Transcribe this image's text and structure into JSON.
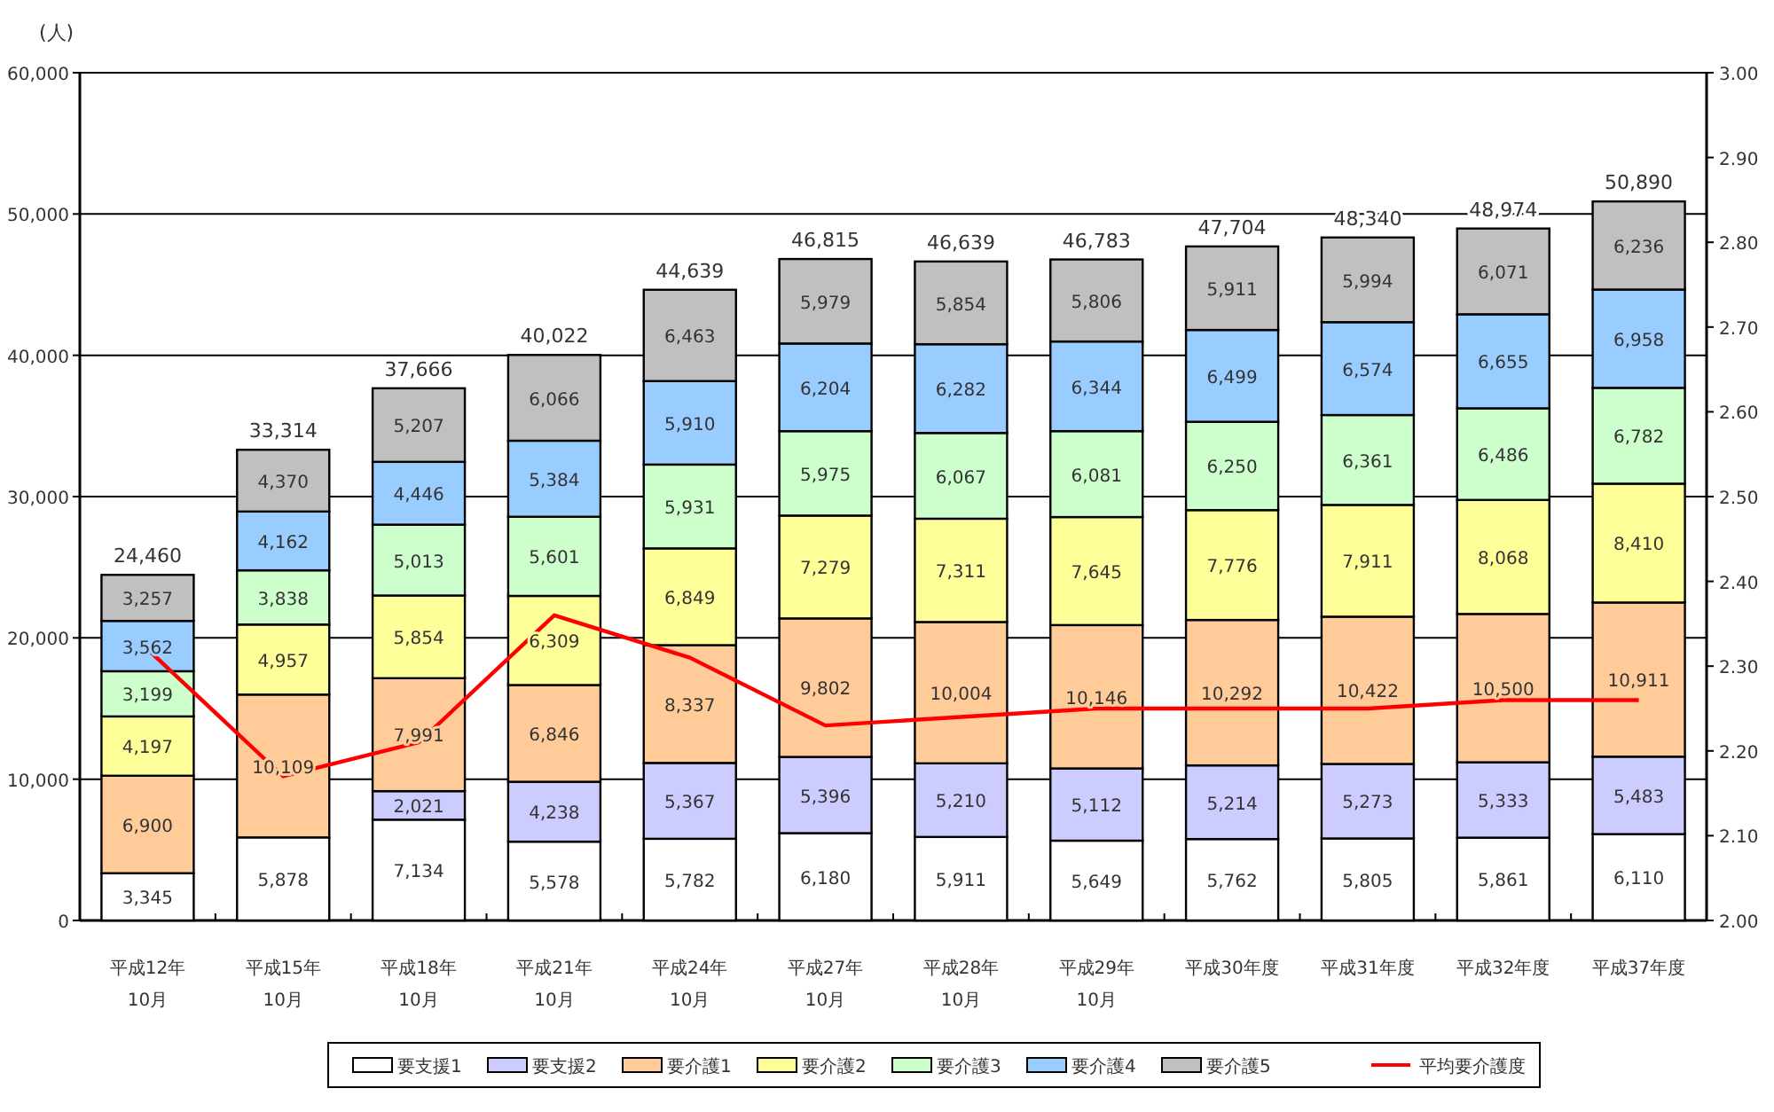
{
  "chart_data": {
    "type": "bar",
    "stacked": true,
    "ylabel": "(人)",
    "categories": [
      "平成12年\n10月",
      "平成15年\n10月",
      "平成18年\n10月",
      "平成21年\n10月",
      "平成24年\n10月",
      "平成27年\n10月",
      "平成28年\n10月",
      "平成29年\n10月",
      "平成30年度",
      "平成31年度",
      "平成32年度",
      "平成37年度"
    ],
    "series": [
      {
        "name": "要支援1",
        "color": "#ffffff",
        "values": [
          3345,
          5878,
          7134,
          5578,
          5782,
          6180,
          5911,
          5649,
          5762,
          5805,
          5861,
          6110
        ],
        "value_labels": [
          "3,345",
          "5,878",
          "7,134",
          "5,578",
          "5,782",
          "6,180",
          "5,911",
          "5,649",
          "5,762",
          "5,805",
          "5,861",
          "6,110"
        ]
      },
      {
        "name": "要支援2",
        "color": "#ccccff",
        "values": [
          null,
          null,
          2021,
          4238,
          5367,
          5396,
          5210,
          5112,
          5214,
          5273,
          5333,
          5483
        ],
        "value_labels": [
          null,
          null,
          "2,021",
          "4,238",
          "5,367",
          "5,396",
          "5,210",
          "5,112",
          "5,214",
          "5,273",
          "5,333",
          "5,483"
        ]
      },
      {
        "name": "要介護1",
        "color": "#ffcc99",
        "values": [
          6900,
          10109,
          7991,
          6846,
          8337,
          9802,
          10004,
          10146,
          10292,
          10422,
          10500,
          10911
        ],
        "value_labels": [
          "6,900",
          "10,109",
          "7,991",
          "6,846",
          "8,337",
          "9,802",
          "10,004",
          "10,146",
          "10,292",
          "10,422",
          "10,500",
          "10,911"
        ]
      },
      {
        "name": "要介護2",
        "color": "#ffff99",
        "values": [
          4197,
          4957,
          5854,
          6309,
          6849,
          7279,
          7311,
          7645,
          7776,
          7911,
          8068,
          8410
        ],
        "value_labels": [
          "4,197",
          "4,957",
          "5,854",
          "6,309",
          "6,849",
          "7,279",
          "7,311",
          "7,645",
          "7,776",
          "7,911",
          "8,068",
          "8,410"
        ]
      },
      {
        "name": "要介護3",
        "color": "#ccffcc",
        "values": [
          3199,
          3838,
          5013,
          5601,
          5931,
          5975,
          6067,
          6081,
          6250,
          6361,
          6486,
          6782
        ],
        "value_labels": [
          "3,199",
          "3,838",
          "5,013",
          "5,601",
          "5,931",
          "5,975",
          "6,067",
          "6,081",
          "6,250",
          "6,361",
          "6,486",
          "6,782"
        ]
      },
      {
        "name": "要介護4",
        "color": "#99ccff",
        "values": [
          3562,
          4162,
          4446,
          5384,
          5910,
          6204,
          6282,
          6344,
          6499,
          6574,
          6655,
          6958
        ],
        "value_labels": [
          "3,562",
          "4,162",
          "4,446",
          "5,384",
          "5,910",
          "6,204",
          "6,282",
          "6,344",
          "6,499",
          "6,574",
          "6,655",
          "6,958"
        ]
      },
      {
        "name": "要介護5",
        "color": "#c0c0c0",
        "values": [
          3257,
          4370,
          5207,
          6066,
          6463,
          5979,
          5854,
          5806,
          5911,
          5994,
          6071,
          6236
        ],
        "value_labels": [
          "3,257",
          "4,370",
          "5,207",
          "6,066",
          "6,463",
          "5,979",
          "5,854",
          "5,806",
          "5,911",
          "5,994",
          "6,071",
          "6,236"
        ]
      },
      {
        "name": "平均要介護度",
        "type": "line",
        "axis": "y2",
        "color": "#ff0000",
        "values": [
          2.32,
          2.17,
          2.21,
          2.36,
          2.31,
          2.23,
          2.24,
          2.25,
          2.25,
          2.25,
          2.26,
          2.26
        ]
      }
    ],
    "totals": [
      "24,460",
      "33,314",
      "37,666",
      "40,022",
      "44,639",
      "46,815",
      "46,639",
      "46,783",
      "47,704",
      "48,340",
      "48,974",
      "50,890"
    ],
    "ylim": [
      0,
      60000
    ],
    "yticks": [
      0,
      {
        "value": 10000,
        "label": "10,000"
      },
      {
        "value": 20000,
        "label": "20,000"
      },
      {
        "value": 30000,
        "label": "30,000"
      },
      {
        "value": 40000,
        "label": "40,000"
      },
      {
        "value": 50000,
        "label": "50,000"
      },
      {
        "value": 60000,
        "label": "60,000"
      }
    ],
    "y2lim": [
      2,
      3
    ],
    "y2ticks": [
      {
        "value": 2.0,
        "label": "2.00"
      },
      {
        "value": 2.1,
        "label": "2.10"
      },
      {
        "value": 2.2,
        "label": "2.20"
      },
      {
        "value": 2.3,
        "label": "2.30"
      },
      {
        "value": 2.4,
        "label": "2.40"
      },
      {
        "value": 2.5,
        "label": "2.50"
      },
      {
        "value": 2.6,
        "label": "2.60"
      },
      {
        "value": 2.7,
        "label": "2.70"
      },
      {
        "value": 2.8,
        "label": "2.80"
      },
      {
        "value": 2.9,
        "label": "2.90"
      },
      {
        "value": 3.0,
        "label": "3.00"
      }
    ],
    "grid": "y",
    "legend": "bottom"
  }
}
